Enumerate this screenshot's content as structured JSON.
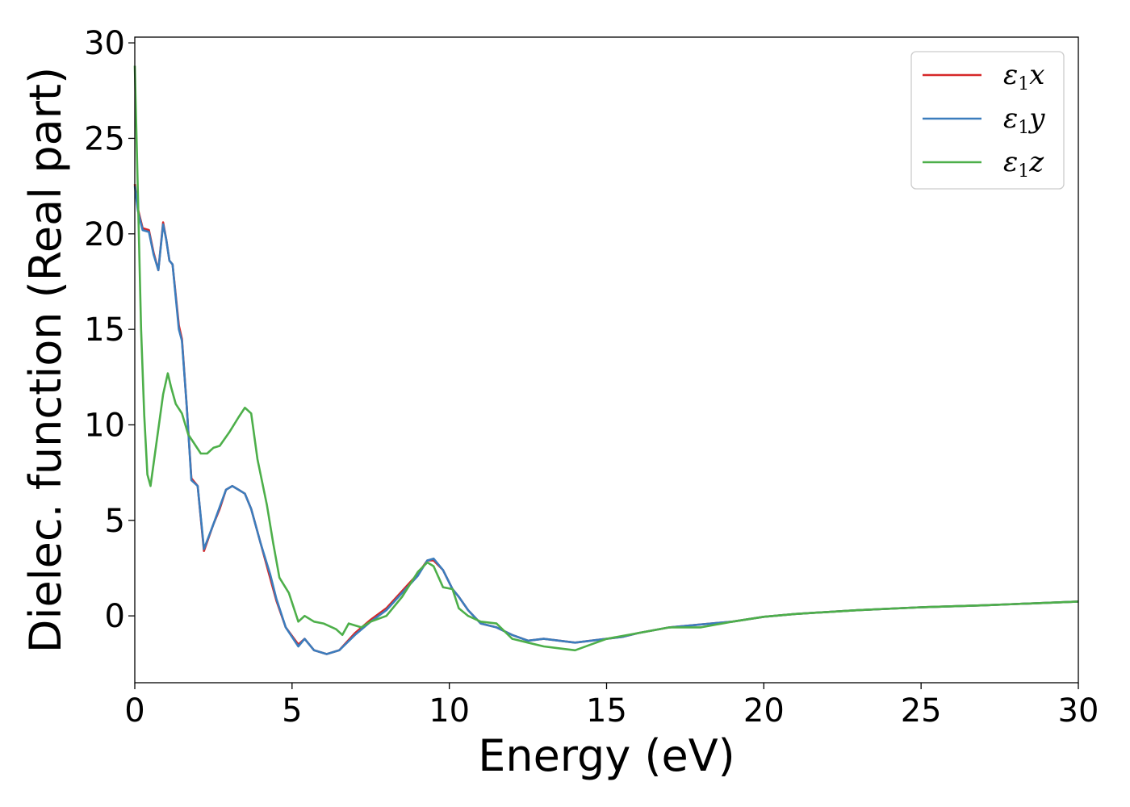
{
  "chart_data": {
    "type": "line",
    "xlabel": "Energy (eV)",
    "ylabel": "Dielec. function (Real part)",
    "xlim": [
      0,
      30
    ],
    "ylim": [
      -3.5,
      30.3
    ],
    "xticks": [
      0,
      5,
      10,
      15,
      20,
      25,
      30
    ],
    "yticks": [
      0,
      5,
      10,
      15,
      20,
      25,
      30
    ],
    "grid": false,
    "legend_position": "top-right",
    "series": [
      {
        "name": "ε1x",
        "symbol": "ε",
        "sub": "1",
        "suffix": "x",
        "color": "#d62728",
        "points": [
          [
            0.0,
            22.6
          ],
          [
            0.1,
            21.3
          ],
          [
            0.25,
            20.3
          ],
          [
            0.45,
            20.2
          ],
          [
            0.6,
            19.0
          ],
          [
            0.75,
            18.1
          ],
          [
            0.9,
            20.6
          ],
          [
            1.0,
            19.7
          ],
          [
            1.1,
            18.6
          ],
          [
            1.2,
            18.4
          ],
          [
            1.4,
            15.2
          ],
          [
            1.5,
            14.5
          ],
          [
            1.65,
            11.0
          ],
          [
            1.8,
            7.2
          ],
          [
            2.0,
            6.8
          ],
          [
            2.2,
            3.4
          ],
          [
            2.5,
            4.8
          ],
          [
            2.7,
            5.6
          ],
          [
            2.9,
            6.6
          ],
          [
            3.1,
            6.8
          ],
          [
            3.3,
            6.6
          ],
          [
            3.5,
            6.4
          ],
          [
            3.7,
            5.6
          ],
          [
            4.0,
            3.8
          ],
          [
            4.3,
            2.0
          ],
          [
            4.5,
            0.8
          ],
          [
            4.8,
            -0.6
          ],
          [
            5.2,
            -1.5
          ],
          [
            5.4,
            -1.2
          ],
          [
            5.7,
            -1.8
          ],
          [
            6.1,
            -2.0
          ],
          [
            6.5,
            -1.8
          ],
          [
            7.0,
            -0.9
          ],
          [
            7.5,
            -0.2
          ],
          [
            8.0,
            0.4
          ],
          [
            8.5,
            1.3
          ],
          [
            9.0,
            2.2
          ],
          [
            9.3,
            2.9
          ],
          [
            9.5,
            2.9
          ],
          [
            9.8,
            2.4
          ],
          [
            10.1,
            1.4
          ],
          [
            10.3,
            1.0
          ],
          [
            10.6,
            0.3
          ],
          [
            11.0,
            -0.4
          ],
          [
            11.5,
            -0.6
          ],
          [
            12.0,
            -1.0
          ],
          [
            12.5,
            -1.3
          ],
          [
            13.0,
            -1.2
          ],
          [
            13.5,
            -1.3
          ],
          [
            14.0,
            -1.4
          ],
          [
            14.5,
            -1.3
          ],
          [
            15.0,
            -1.2
          ],
          [
            15.5,
            -1.1
          ],
          [
            16.0,
            -0.9
          ],
          [
            17.0,
            -0.6
          ],
          [
            18.0,
            -0.45
          ],
          [
            19.0,
            -0.3
          ],
          [
            20.0,
            -0.05
          ],
          [
            21.0,
            0.1
          ],
          [
            22.0,
            0.2
          ],
          [
            23.0,
            0.3
          ],
          [
            25.0,
            0.45
          ],
          [
            27.0,
            0.55
          ],
          [
            28.0,
            0.62
          ],
          [
            30.0,
            0.75
          ]
        ]
      },
      {
        "name": "ε1y",
        "symbol": "ε",
        "sub": "1",
        "suffix": "y",
        "color": "#3b7dbd",
        "points": [
          [
            0.0,
            22.5
          ],
          [
            0.1,
            21.2
          ],
          [
            0.25,
            20.2
          ],
          [
            0.45,
            20.1
          ],
          [
            0.6,
            18.9
          ],
          [
            0.75,
            18.1
          ],
          [
            0.9,
            20.5
          ],
          [
            1.0,
            19.7
          ],
          [
            1.1,
            18.6
          ],
          [
            1.2,
            18.4
          ],
          [
            1.4,
            15.0
          ],
          [
            1.5,
            14.4
          ],
          [
            1.65,
            11.0
          ],
          [
            1.8,
            7.1
          ],
          [
            2.0,
            6.8
          ],
          [
            2.2,
            3.5
          ],
          [
            2.5,
            4.8
          ],
          [
            2.7,
            5.7
          ],
          [
            2.9,
            6.6
          ],
          [
            3.1,
            6.8
          ],
          [
            3.3,
            6.6
          ],
          [
            3.5,
            6.4
          ],
          [
            3.7,
            5.6
          ],
          [
            4.0,
            3.8
          ],
          [
            4.3,
            2.2
          ],
          [
            4.5,
            0.9
          ],
          [
            4.8,
            -0.6
          ],
          [
            5.2,
            -1.6
          ],
          [
            5.4,
            -1.2
          ],
          [
            5.7,
            -1.8
          ],
          [
            6.1,
            -2.0
          ],
          [
            6.5,
            -1.8
          ],
          [
            7.0,
            -1.0
          ],
          [
            7.5,
            -0.3
          ],
          [
            8.0,
            0.3
          ],
          [
            8.5,
            1.2
          ],
          [
            9.0,
            2.1
          ],
          [
            9.3,
            2.9
          ],
          [
            9.5,
            3.0
          ],
          [
            9.8,
            2.4
          ],
          [
            10.1,
            1.4
          ],
          [
            10.3,
            1.0
          ],
          [
            10.6,
            0.3
          ],
          [
            11.0,
            -0.4
          ],
          [
            11.5,
            -0.6
          ],
          [
            12.0,
            -1.0
          ],
          [
            12.5,
            -1.3
          ],
          [
            13.0,
            -1.2
          ],
          [
            13.5,
            -1.3
          ],
          [
            14.0,
            -1.4
          ],
          [
            14.5,
            -1.3
          ],
          [
            15.0,
            -1.2
          ],
          [
            15.5,
            -1.1
          ],
          [
            16.0,
            -0.9
          ],
          [
            17.0,
            -0.6
          ],
          [
            18.0,
            -0.45
          ],
          [
            19.0,
            -0.3
          ],
          [
            20.0,
            -0.05
          ],
          [
            21.0,
            0.1
          ],
          [
            22.0,
            0.2
          ],
          [
            23.0,
            0.3
          ],
          [
            25.0,
            0.45
          ],
          [
            27.0,
            0.55
          ],
          [
            28.0,
            0.62
          ],
          [
            30.0,
            0.75
          ]
        ]
      },
      {
        "name": "ε1z",
        "symbol": "ε",
        "sub": "1",
        "suffix": "z",
        "color": "#4daf4a",
        "points": [
          [
            0.0,
            28.8
          ],
          [
            0.1,
            22.0
          ],
          [
            0.2,
            15.0
          ],
          [
            0.3,
            10.5
          ],
          [
            0.4,
            7.4
          ],
          [
            0.5,
            6.8
          ],
          [
            0.7,
            9.2
          ],
          [
            0.9,
            11.6
          ],
          [
            1.05,
            12.7
          ],
          [
            1.15,
            12.0
          ],
          [
            1.3,
            11.1
          ],
          [
            1.5,
            10.6
          ],
          [
            1.7,
            9.5
          ],
          [
            1.9,
            9.0
          ],
          [
            2.1,
            8.5
          ],
          [
            2.3,
            8.5
          ],
          [
            2.5,
            8.8
          ],
          [
            2.7,
            8.9
          ],
          [
            3.0,
            9.6
          ],
          [
            3.3,
            10.4
          ],
          [
            3.5,
            10.9
          ],
          [
            3.7,
            10.6
          ],
          [
            3.9,
            8.2
          ],
          [
            4.2,
            5.8
          ],
          [
            4.4,
            3.8
          ],
          [
            4.6,
            2.0
          ],
          [
            4.9,
            1.2
          ],
          [
            5.2,
            -0.3
          ],
          [
            5.4,
            0.0
          ],
          [
            5.7,
            -0.3
          ],
          [
            6.0,
            -0.4
          ],
          [
            6.4,
            -0.7
          ],
          [
            6.6,
            -1.0
          ],
          [
            6.8,
            -0.4
          ],
          [
            7.0,
            -0.5
          ],
          [
            7.2,
            -0.6
          ],
          [
            7.5,
            -0.3
          ],
          [
            8.0,
            0.0
          ],
          [
            8.5,
            1.0
          ],
          [
            9.0,
            2.3
          ],
          [
            9.3,
            2.8
          ],
          [
            9.5,
            2.6
          ],
          [
            9.8,
            1.5
          ],
          [
            10.1,
            1.4
          ],
          [
            10.3,
            0.4
          ],
          [
            10.6,
            0.0
          ],
          [
            11.0,
            -0.3
          ],
          [
            11.5,
            -0.4
          ],
          [
            12.0,
            -1.2
          ],
          [
            12.5,
            -1.4
          ],
          [
            13.0,
            -1.6
          ],
          [
            13.5,
            -1.7
          ],
          [
            14.0,
            -1.8
          ],
          [
            14.5,
            -1.5
          ],
          [
            15.0,
            -1.2
          ],
          [
            16.0,
            -0.9
          ],
          [
            17.0,
            -0.6
          ],
          [
            18.0,
            -0.6
          ],
          [
            19.0,
            -0.3
          ],
          [
            20.0,
            -0.05
          ],
          [
            21.0,
            0.1
          ],
          [
            22.0,
            0.2
          ],
          [
            23.0,
            0.3
          ],
          [
            25.0,
            0.45
          ],
          [
            27.0,
            0.55
          ],
          [
            28.0,
            0.62
          ],
          [
            30.0,
            0.75
          ]
        ]
      }
    ]
  }
}
